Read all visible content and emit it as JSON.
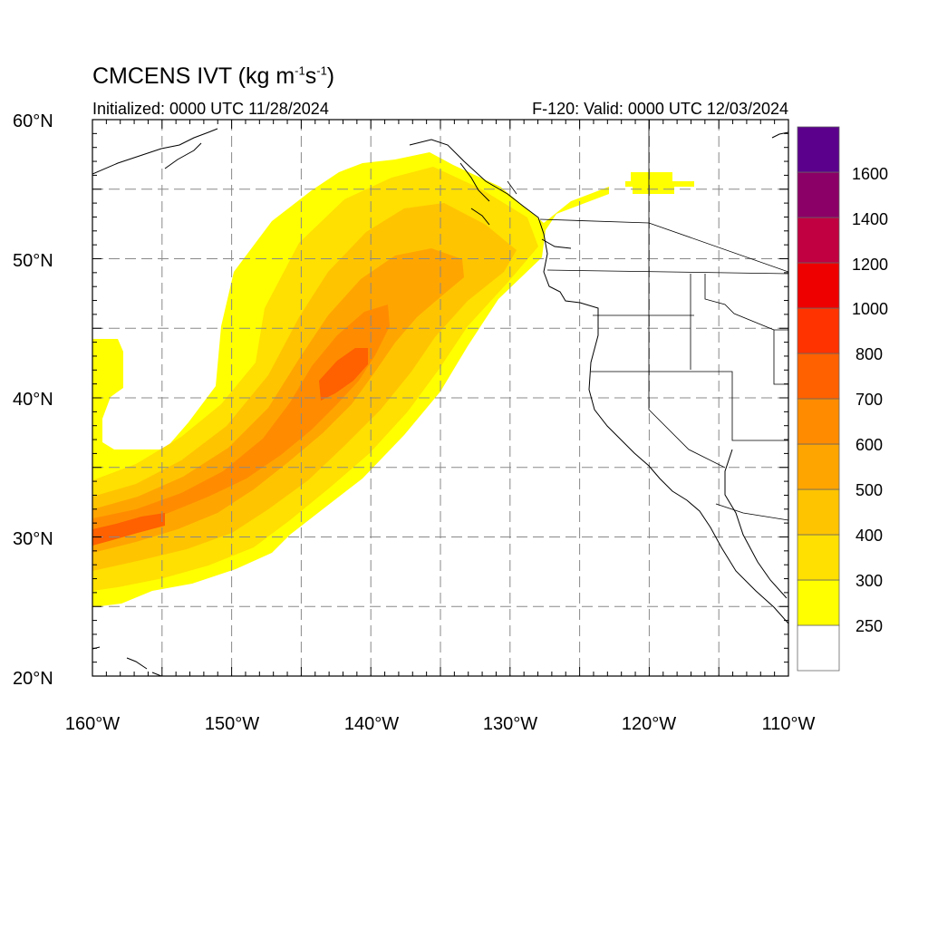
{
  "title": {
    "main": "CMCENS IVT (kg m",
    "exp1": "-1",
    "mid": "s",
    "exp2": "-1",
    "close": ")"
  },
  "subtitle_left": "Initialized: 0000 UTC 11/28/2024",
  "subtitle_right": "F-120: Valid: 0000 UTC 12/03/2024",
  "map": {
    "lon_range": [
      -160,
      -110
    ],
    "lat_range": [
      20,
      60
    ],
    "grid": true,
    "grid_lons": [
      -155,
      -150,
      -145,
      -140,
      -135,
      -130,
      -125,
      -120,
      -115
    ],
    "grid_lats": [
      25,
      30,
      35,
      40,
      45,
      50,
      55
    ]
  },
  "axes": {
    "lat_labels": [
      "60°N",
      "50°N",
      "40°N",
      "30°N",
      "20°N"
    ],
    "lon_labels": [
      "160°W",
      "150°W",
      "140°W",
      "130°W",
      "120°W",
      "110°W"
    ]
  },
  "colorbar": {
    "labels": [
      "1600",
      "1400",
      "1200",
      "1000",
      "800",
      "700",
      "600",
      "500",
      "400",
      "300",
      "250"
    ],
    "colors": [
      "#ffffff",
      "#ffff00",
      "#ffe000",
      "#ffc400",
      "#ffa500",
      "#ff8c00",
      "#ff6000",
      "#ff3300",
      "#ee0000",
      "#c00040",
      "#8b0066",
      "#5a008c"
    ]
  },
  "ivt_field": {
    "colors": {
      "250": "#ffff00",
      "300": "#ffe000",
      "400": "#ffc400",
      "500": "#ffa500",
      "600": "#ff8c00",
      "700": "#ff6000"
    }
  }
}
